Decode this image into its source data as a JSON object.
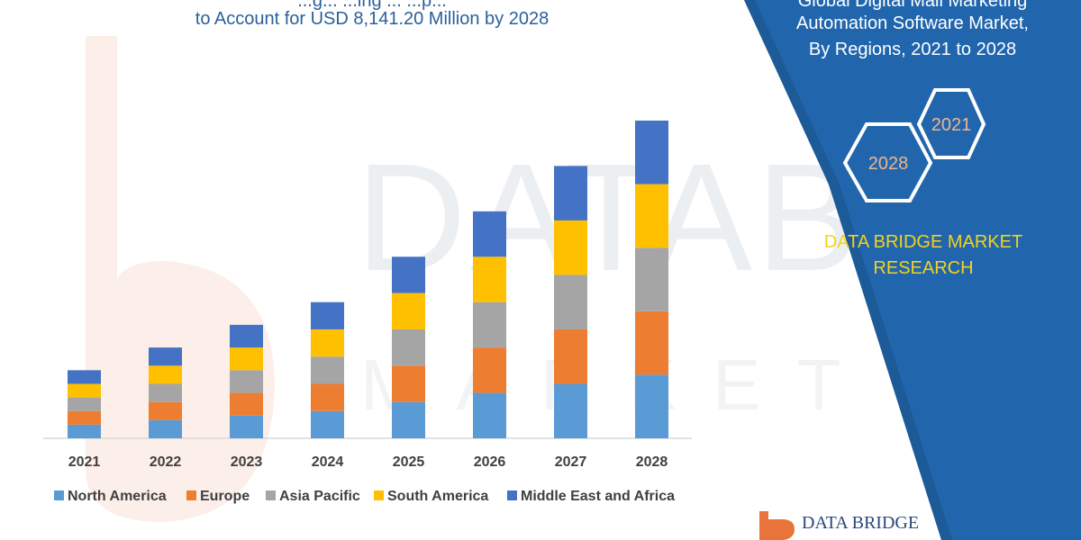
{
  "header": {
    "title_line_1": "...g... ...ing ... ...p...",
    "title_line_2": "to Account for USD 8,141.20 Million by 2028"
  },
  "side_panel": {
    "title_line_1": "Global Digital Mail Marketing",
    "title_line_2": "Automation Software Market,",
    "title_line_3": "By Regions, 2021 to 2028",
    "hex_year_1": "2021",
    "hex_year_2": "2028",
    "research_line_1": "DATA BRIDGE MARKET",
    "research_line_2": "RESEARCH",
    "logo_text": "DATA BRIDGE",
    "bg_color": "#2166ad",
    "accent_color": "#f5d21a"
  },
  "chart_data": {
    "type": "bar",
    "stacked": true,
    "categories": [
      "2021",
      "2022",
      "2023",
      "2024",
      "2025",
      "2026",
      "2027",
      "2028"
    ],
    "series": [
      {
        "name": "North America",
        "color": "#5b9bd5",
        "values": [
          15,
          20,
          25,
          30,
          40,
          50,
          60,
          70
        ]
      },
      {
        "name": "Europe",
        "color": "#ed7d31",
        "values": [
          15,
          20,
          25,
          30,
          40,
          50,
          60,
          70
        ]
      },
      {
        "name": "Asia Pacific",
        "color": "#a5a5a5",
        "values": [
          15,
          20,
          25,
          30,
          40,
          50,
          60,
          70
        ]
      },
      {
        "name": "South America",
        "color": "#ffc000",
        "values": [
          15,
          20,
          25,
          30,
          40,
          50,
          60,
          70
        ]
      },
      {
        "name": "Middle East and Africa",
        "color": "#4472c4",
        "values": [
          15,
          20,
          25,
          30,
          40,
          50,
          60,
          70
        ]
      }
    ],
    "ylim": [
      0,
      350
    ],
    "grid": false,
    "legend_position": "bottom"
  }
}
